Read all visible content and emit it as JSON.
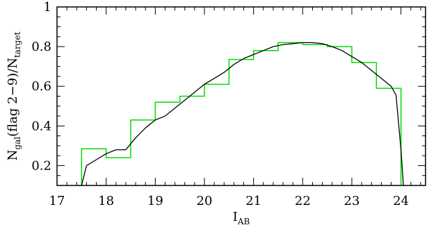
{
  "chart_data": {
    "type": "line",
    "title": "",
    "xlabel": "I",
    "xlabel_sub": "AB",
    "ylabel_parts": {
      "n1": "N",
      "sub1": "gal",
      "mid": "(flag 2−9)/N",
      "sub2": "target"
    },
    "xlim": [
      17,
      24.5
    ],
    "ylim": [
      0.1,
      1.0
    ],
    "xticks": [
      17,
      18,
      19,
      20,
      21,
      22,
      23,
      24
    ],
    "xtick_labels": [
      "17",
      "18",
      "19",
      "20",
      "21",
      "22",
      "23",
      "24"
    ],
    "yticks": [
      0.2,
      0.4,
      0.6,
      0.8,
      1.0
    ],
    "ytick_labels": [
      "0.2",
      "0.4",
      "0.6",
      "0.8",
      "1"
    ],
    "grid": false,
    "series": [
      {
        "kind": "step",
        "color": "#00dd00",
        "bin_edges": [
          17.5,
          18.0,
          18.5,
          19.0,
          19.5,
          20.0,
          20.5,
          21.0,
          21.5,
          22.0,
          22.5,
          23.0,
          23.5,
          24.0
        ],
        "values": [
          0.285,
          0.24,
          0.43,
          0.52,
          0.55,
          0.61,
          0.735,
          0.78,
          0.82,
          0.81,
          0.8,
          0.72,
          0.59
        ]
      },
      {
        "kind": "line",
        "color": "#000000",
        "x": [
          17.5,
          17.6,
          17.8,
          18.0,
          18.2,
          18.4,
          18.6,
          18.8,
          19.0,
          19.2,
          19.4,
          19.6,
          19.8,
          20.0,
          20.2,
          20.4,
          20.6,
          20.8,
          21.0,
          21.2,
          21.4,
          21.6,
          21.8,
          22.0,
          22.2,
          22.4,
          22.6,
          22.8,
          23.0,
          23.2,
          23.4,
          23.6,
          23.8,
          23.9,
          24.0,
          24.05
        ],
        "y": [
          0.1,
          0.2,
          0.23,
          0.26,
          0.28,
          0.28,
          0.34,
          0.39,
          0.43,
          0.45,
          0.49,
          0.53,
          0.57,
          0.61,
          0.64,
          0.67,
          0.71,
          0.74,
          0.76,
          0.78,
          0.8,
          0.81,
          0.815,
          0.82,
          0.82,
          0.815,
          0.8,
          0.78,
          0.75,
          0.72,
          0.68,
          0.64,
          0.6,
          0.555,
          0.28,
          0.1
        ]
      }
    ]
  }
}
